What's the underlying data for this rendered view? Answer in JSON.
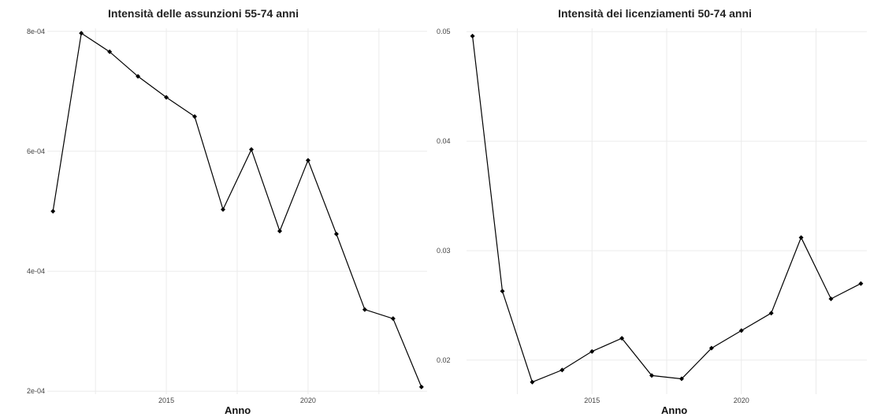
{
  "chart_data": [
    {
      "type": "line",
      "title": "Intensità delle assunzioni 55-74 anni",
      "xlabel": "Anno",
      "ylabel": "",
      "xlim": [
        2010.8,
        2024.2
      ],
      "ylim": [
        0.000195,
        0.000805
      ],
      "x_ticks": [
        2015,
        2020
      ],
      "y_ticks": [
        0.0002,
        0.0004,
        0.0006,
        0.0008
      ],
      "y_tick_labels": [
        "2e-04",
        "4e-04",
        "6e-04",
        "8e-04"
      ],
      "grid": true,
      "legend": "none",
      "x": [
        2011,
        2012,
        2013,
        2014,
        2015,
        2016,
        2017,
        2018,
        2019,
        2020,
        2021,
        2022,
        2023,
        2024
      ],
      "series": [
        {
          "values": [
            0.0005,
            0.000797,
            0.000766,
            0.000725,
            0.00069,
            0.000658,
            0.000503,
            0.000603,
            0.000467,
            0.000585,
            0.000462,
            0.000336,
            0.000321,
            0.000207
          ]
        }
      ]
    },
    {
      "type": "line",
      "title": "Intensità dei licenziamenti 50-74 anni",
      "xlabel": "Anno",
      "ylabel": "",
      "xlim": [
        2010.8,
        2024.2
      ],
      "ylim": [
        0.0169,
        0.0503
      ],
      "x_ticks": [
        2015,
        2020
      ],
      "y_ticks": [
        0.02,
        0.03,
        0.04,
        0.05
      ],
      "y_tick_labels": [
        "0.02",
        "0.03",
        "0.04",
        "0.05"
      ],
      "grid": true,
      "legend": "none",
      "x": [
        2011,
        2012,
        2013,
        2014,
        2015,
        2016,
        2017,
        2018,
        2019,
        2020,
        2021,
        2022,
        2023,
        2024
      ],
      "series": [
        {
          "values": [
            0.0496,
            0.0263,
            0.018,
            0.0191,
            0.0208,
            0.022,
            0.0186,
            0.0183,
            0.0211,
            0.0227,
            0.0243,
            0.0312,
            0.0256,
            0.027
          ]
        }
      ]
    }
  ]
}
